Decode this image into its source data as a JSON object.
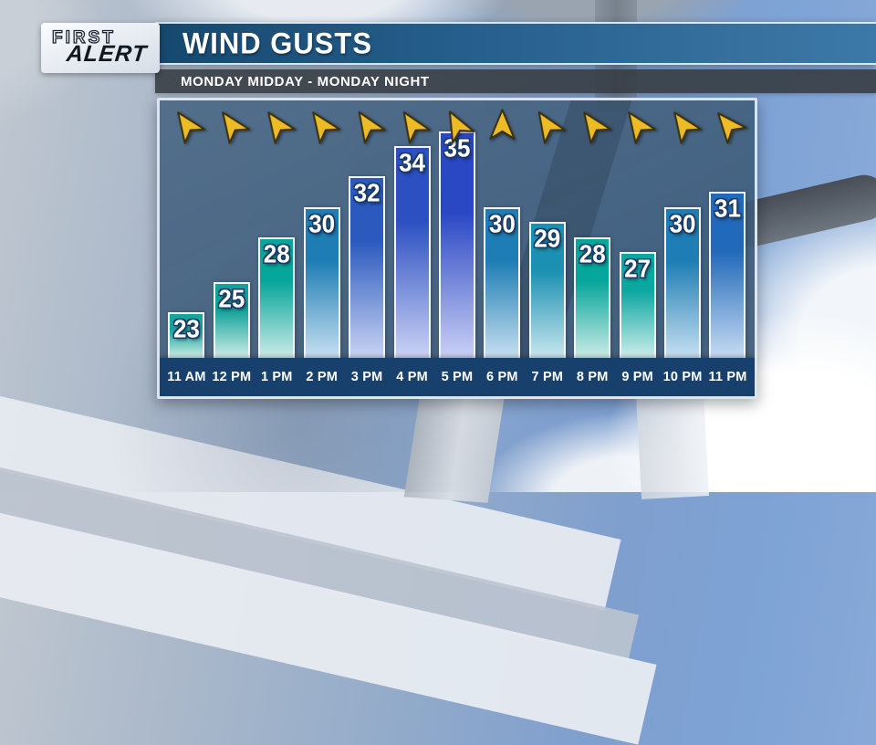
{
  "branding": {
    "line1": "FIRST",
    "line2": "ALERT"
  },
  "header": {
    "title": "WIND GUSTS",
    "subtitle": "MONDAY MIDDAY - MONDAY NIGHT"
  },
  "chart_data": {
    "type": "bar",
    "title": "WIND GUSTS",
    "subtitle": "MONDAY MIDDAY - MONDAY NIGHT",
    "categories": [
      "11 AM",
      "12 PM",
      "1 PM",
      "2 PM",
      "3 PM",
      "4 PM",
      "5 PM",
      "6 PM",
      "7 PM",
      "8 PM",
      "9 PM",
      "10 PM",
      "11 PM"
    ],
    "values": [
      23,
      25,
      28,
      30,
      32,
      34,
      35,
      30,
      29,
      28,
      27,
      30,
      31
    ],
    "xlabel": "",
    "ylabel": "",
    "ylim": [
      20,
      36
    ],
    "grid": false,
    "legend_position": "none",
    "bar_colors_top": [
      "#17A49C",
      "#11A39B",
      "#05A69B",
      "#1E7DB4",
      "#2B59BE",
      "#2C50C2",
      "#2A47C4",
      "#1E7DB4",
      "#1B90B2",
      "#05A69B",
      "#0BA7A1",
      "#1E7DB4",
      "#2169BA"
    ],
    "bar_colors_bottom": [
      "#D2EEE9",
      "#D0EDE8",
      "#CDECE7",
      "#C7E0F1",
      "#CAD4F3",
      "#CCD3F5",
      "#CAD0F5",
      "#C7E0F1",
      "#C9E7EF",
      "#CDECE7",
      "#CFEEEB",
      "#C7E0F1",
      "#C7DCF3"
    ],
    "wind_arrows": {
      "color": "#EDBB26",
      "outline": "#3A3110",
      "rotations_deg": [
        -35,
        -35,
        -35,
        -35,
        -33,
        -33,
        -28,
        0,
        -33,
        -35,
        -35,
        -35,
        -40
      ]
    },
    "axis_strip_color": "#17406C",
    "panel_color": "#45627f"
  }
}
